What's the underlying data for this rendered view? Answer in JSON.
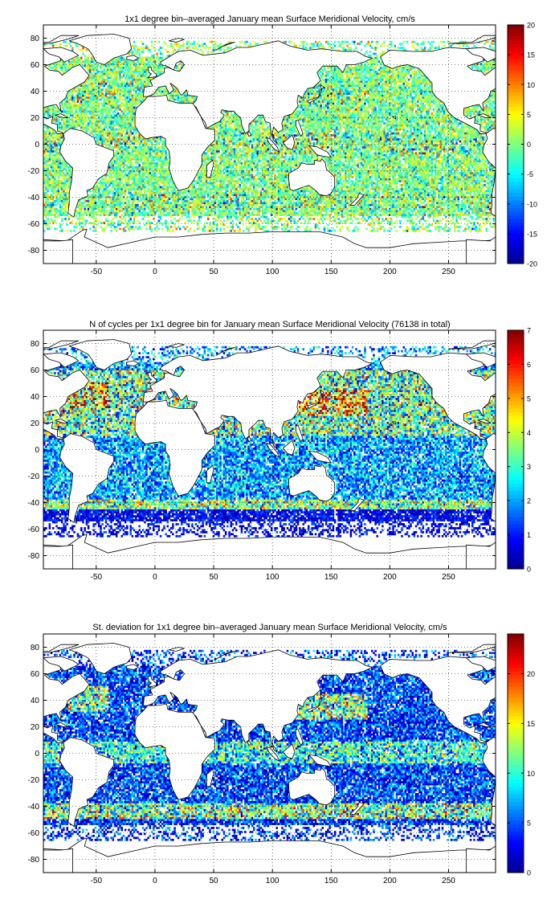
{
  "colormap": [
    "#00008f",
    "#0000ff",
    "#007fff",
    "#00ffff",
    "#7fff7f",
    "#ffff00",
    "#ff7f00",
    "#ff0000",
    "#7f0000"
  ],
  "chart_data": [
    {
      "type": "heatmap",
      "title": "1x1 degree bin–averaged January mean Surface Meridional Velocity, cm/s",
      "xlabel": "",
      "ylabel": "",
      "xlim": [
        -95,
        290
      ],
      "ylim": [
        -90,
        90
      ],
      "x_ticks": [
        -50,
        0,
        50,
        100,
        150,
        200,
        250
      ],
      "y_ticks": [
        -80,
        -60,
        -40,
        -20,
        0,
        20,
        40,
        60,
        80
      ],
      "grid": true,
      "colorbar": {
        "min": -20,
        "max": 20,
        "ticks": [
          -20,
          -15,
          -10,
          -5,
          0,
          5,
          10,
          15,
          20
        ]
      },
      "field_mode": "signed",
      "resolution_deg": 1
    },
    {
      "type": "heatmap",
      "title": "N of cycles per 1x1 degree bin for January mean Surface Meridional Velocity (76138 in total)",
      "xlabel": "",
      "ylabel": "",
      "xlim": [
        -95,
        290
      ],
      "ylim": [
        -90,
        90
      ],
      "x_ticks": [
        -50,
        0,
        50,
        100,
        150,
        200,
        250
      ],
      "y_ticks": [
        -80,
        -60,
        -40,
        -20,
        0,
        20,
        40,
        60,
        80
      ],
      "grid": true,
      "colorbar": {
        "min": 0,
        "max": 7,
        "ticks": [
          0,
          1,
          2,
          3,
          4,
          5,
          6,
          7
        ]
      },
      "field_mode": "count",
      "resolution_deg": 1
    },
    {
      "type": "heatmap",
      "title": "St. deviation for 1x1 degree bin–averaged January mean Surface Meridional Velocity, cm/s",
      "xlabel": "",
      "ylabel": "",
      "xlim": [
        -95,
        290
      ],
      "ylim": [
        -90,
        90
      ],
      "x_ticks": [
        -50,
        0,
        50,
        100,
        150,
        200,
        250
      ],
      "y_ticks": [
        -80,
        -60,
        -40,
        -20,
        0,
        20,
        40,
        60,
        80
      ],
      "grid": true,
      "colorbar": {
        "min": 0,
        "max": 24,
        "ticks": [
          0,
          5,
          10,
          15,
          20
        ]
      },
      "field_mode": "std",
      "resolution_deg": 1
    }
  ]
}
